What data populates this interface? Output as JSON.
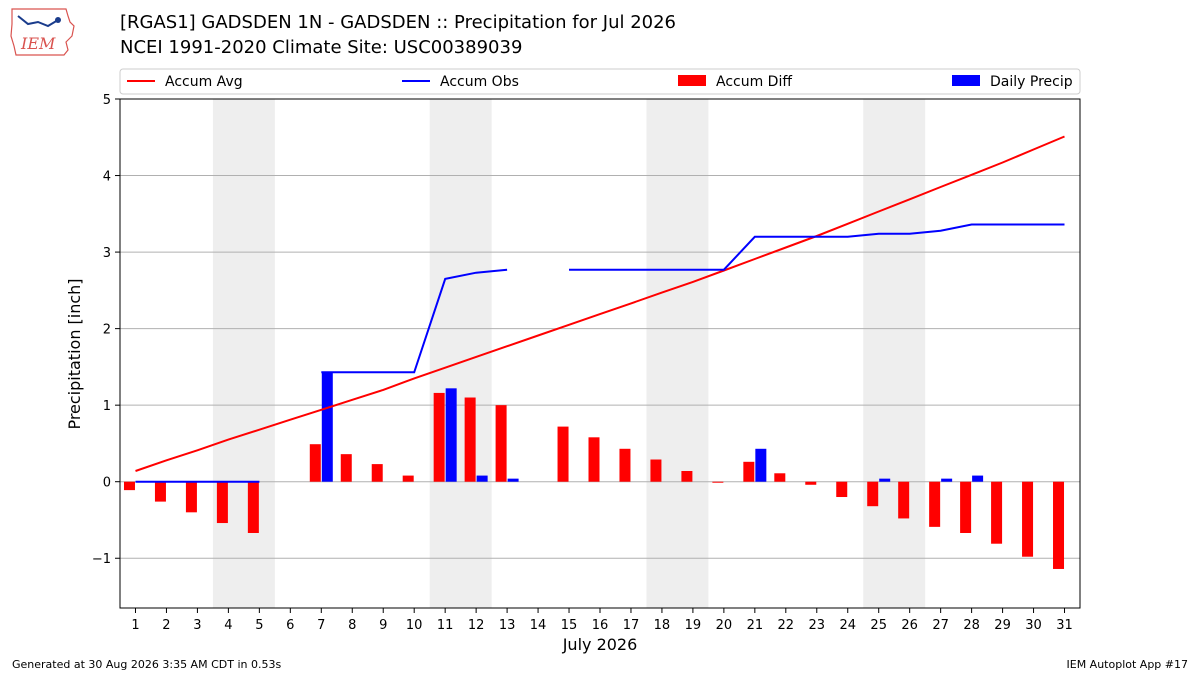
{
  "header": {
    "title_line1": "[RGAS1] GADSDEN 1N - GADSDEN :: Precipitation for Jul 2026",
    "title_line2": "NCEI 1991-2020 Climate Site: USC00389039",
    "logo_text": "IEM"
  },
  "footer": {
    "generated": "Generated at 30 Aug 2026 3:35 AM CDT in 0.53s",
    "app": "IEM Autoplot App #17"
  },
  "chart_data": {
    "type": "bar",
    "title": "[RGAS1] GADSDEN 1N - GADSDEN :: Precipitation for Jul 2026",
    "xlabel": "July 2026",
    "ylabel": "Precipitation [inch]",
    "xlim": [
      0.5,
      31.5
    ],
    "ylim": [
      -1.65,
      5
    ],
    "yticks": [
      -1,
      0,
      1,
      2,
      3,
      4,
      5
    ],
    "ytick_labels": [
      "−1",
      "0",
      "1",
      "2",
      "3",
      "4",
      "5"
    ],
    "grid": "horizontal",
    "legend_position": "top",
    "weekend_shading": [
      [
        3.5,
        5.5
      ],
      [
        10.5,
        12.5
      ],
      [
        17.5,
        19.5
      ],
      [
        24.5,
        26.5
      ]
    ],
    "days": [
      1,
      2,
      3,
      4,
      5,
      6,
      7,
      8,
      9,
      10,
      11,
      12,
      13,
      14,
      15,
      16,
      17,
      18,
      19,
      20,
      21,
      22,
      23,
      24,
      25,
      26,
      27,
      28,
      29,
      30,
      31
    ],
    "series": [
      {
        "name": "Accum Avg",
        "kind": "line",
        "color": "#ff0000",
        "values": [
          0.14,
          0.28,
          0.41,
          0.55,
          0.68,
          0.81,
          0.94,
          1.07,
          1.2,
          1.35,
          1.49,
          1.63,
          1.77,
          1.91,
          2.05,
          2.19,
          2.33,
          2.47,
          2.61,
          2.76,
          2.91,
          3.06,
          3.21,
          3.37,
          3.53,
          3.69,
          3.85,
          4.01,
          4.17,
          4.34,
          4.51
        ]
      },
      {
        "name": "Accum Obs",
        "kind": "line",
        "color": "#0000ff",
        "values": [
          0.0,
          0.0,
          0.0,
          0.0,
          0.0,
          null,
          1.43,
          1.43,
          1.43,
          1.43,
          2.65,
          2.73,
          2.77,
          null,
          2.77,
          2.77,
          2.77,
          2.77,
          2.77,
          2.77,
          3.2,
          3.2,
          3.2,
          3.2,
          3.24,
          3.24,
          3.28,
          3.36,
          3.36,
          3.36,
          3.36
        ]
      },
      {
        "name": "Accum Diff",
        "kind": "bar",
        "color": "#ff0000",
        "values": [
          -0.11,
          -0.26,
          -0.4,
          -0.54,
          -0.67,
          null,
          0.49,
          0.36,
          0.23,
          0.08,
          1.16,
          1.1,
          1.0,
          null,
          0.72,
          0.58,
          0.43,
          0.29,
          0.14,
          -0.01,
          0.26,
          0.11,
          -0.04,
          -0.2,
          -0.32,
          -0.48,
          -0.59,
          -0.67,
          -0.81,
          -0.98,
          -1.14
        ]
      },
      {
        "name": "Daily Precip",
        "kind": "bar",
        "color": "#0000ff",
        "values": [
          0,
          0,
          0,
          0,
          0,
          null,
          1.43,
          0,
          0,
          0,
          1.22,
          0.08,
          0.04,
          null,
          0,
          0,
          0,
          0,
          0,
          0,
          0.43,
          0,
          0,
          0,
          0.04,
          0,
          0.04,
          0.08,
          0,
          0,
          0
        ]
      }
    ]
  }
}
